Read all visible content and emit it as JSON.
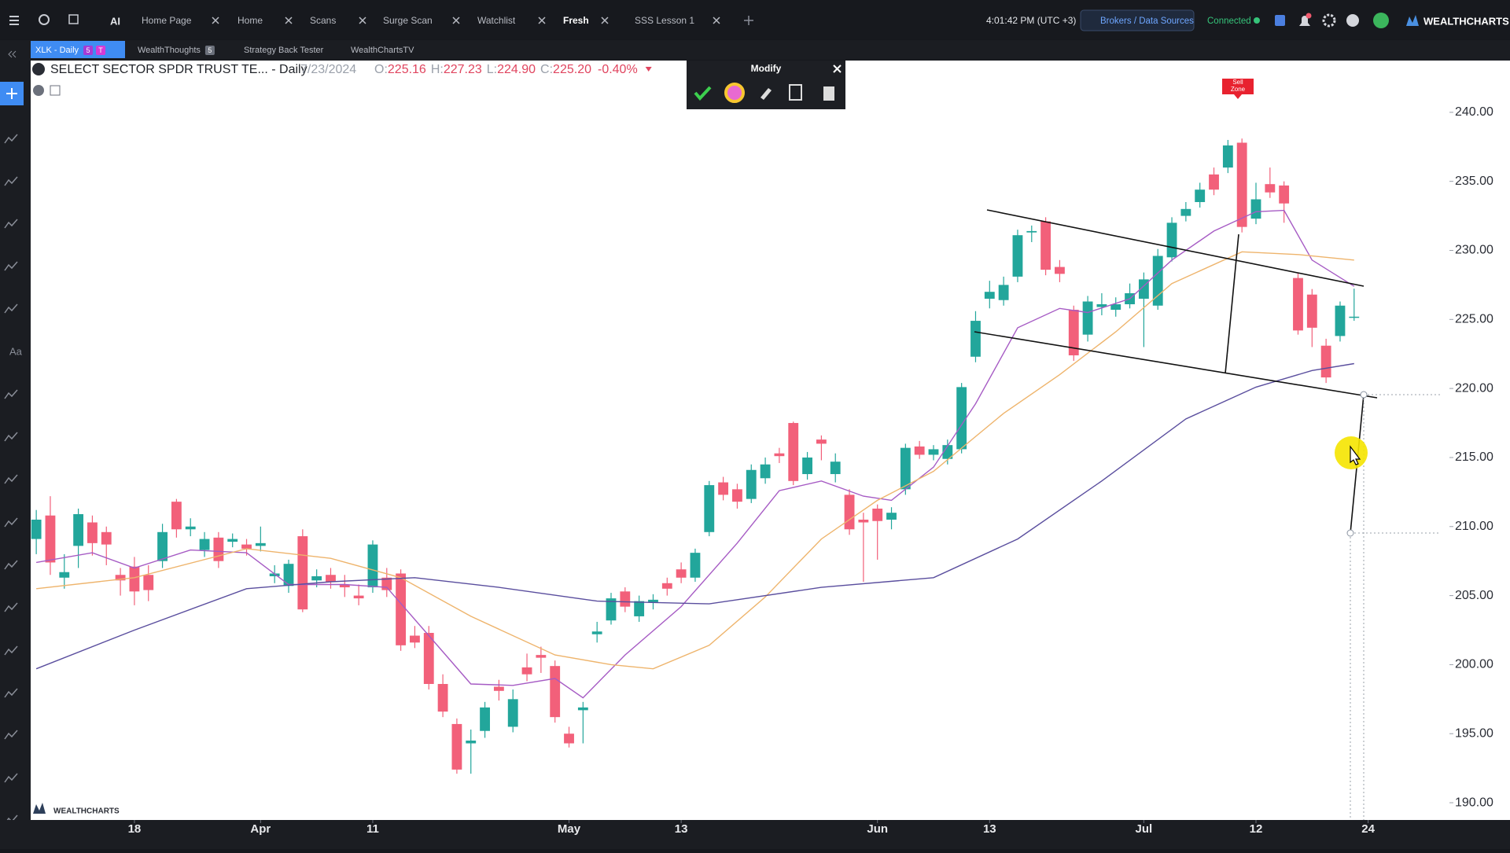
{
  "toolbar": {
    "ai": "AI",
    "tabs": [
      "Home Page",
      "Home",
      "Scans",
      "Surge Scan",
      "Watchlist",
      "Fresh",
      "SSS Lesson 1"
    ],
    "time": "4:01:42 PM  (UTC +3)",
    "brokers": "Brokers / Data Sources",
    "status": "Connected",
    "brand": "WEALTHCHARTS"
  },
  "subtabs": [
    {
      "label": "XLK - Daily",
      "badges": [
        "5",
        "T"
      ]
    },
    {
      "label": "WealthThoughts",
      "badges": [
        "5"
      ]
    },
    {
      "label": "Strategy Back Tester",
      "badges": []
    },
    {
      "label": "WealthChartsTV",
      "badges": []
    }
  ],
  "side_tool_text": "Aa",
  "legend": {
    "symbol": "SELECT SECTOR SPDR TRUST TE... - Daily",
    "date": "7/23/2024",
    "keys": [
      "O:",
      "H:",
      "L:",
      "C:"
    ],
    "values": [
      "225.16",
      "227.23",
      "224.90",
      "225.20"
    ],
    "change": "-0.40%"
  },
  "modify": {
    "title": "Modify"
  },
  "badge": [
    "Sell",
    "Zone"
  ],
  "watermark": "WEALTHCHARTS",
  "chart_data": {
    "type": "candlestick",
    "up_color": "#22a69b",
    "down_color": "#f2607a",
    "open": [
      209.1,
      210.8,
      206.3,
      208.6,
      210.3,
      209.6,
      206.5,
      207.1,
      206.5,
      207.5,
      211.8,
      209.8,
      208.3,
      209.2,
      208.9,
      208.7,
      208.6,
      206.4,
      205.7,
      209.3,
      206.1,
      206.5,
      205.8,
      205.0,
      205.6,
      206.3,
      206.6,
      202.1,
      202.3,
      198.6,
      195.7,
      194.3,
      195.2,
      198.4,
      195.5,
      199.8,
      200.7,
      199.9,
      195.0,
      196.7,
      202.2,
      203.2,
      205.3,
      203.5,
      204.5,
      205.9,
      206.9,
      206.3,
      209.6,
      213.2,
      212.7,
      212.0,
      213.5,
      215.3,
      217.5,
      213.8,
      216.3,
      213.8,
      212.3,
      210.5,
      211.3,
      210.5,
      212.7,
      215.8,
      215.2,
      214.9,
      215.6,
      222.3,
      226.5,
      226.4,
      228.1,
      231.3,
      232.1,
      228.8,
      225.7,
      223.9,
      225.9,
      225.7,
      226.1,
      226.5,
      226.0,
      229.5,
      232.5,
      233.5,
      235.5,
      236.0,
      237.8,
      232.3,
      234.8,
      234.7,
      228.0,
      226.8,
      223.1,
      223.8,
      225.16
    ],
    "high": [
      211.2,
      212.2,
      208.0,
      211.3,
      210.8,
      210.0,
      207.0,
      207.8,
      207.2,
      210.2,
      212.0,
      210.6,
      209.6,
      209.6,
      209.5,
      209.1,
      210.0,
      207.2,
      207.6,
      209.8,
      206.9,
      207.0,
      206.5,
      205.8,
      209.0,
      207.0,
      206.9,
      202.8,
      202.8,
      199.3,
      196.1,
      195.3,
      197.3,
      198.9,
      198.2,
      200.8,
      201.3,
      200.3,
      195.5,
      197.3,
      203.1,
      205.2,
      205.6,
      205.0,
      205.1,
      206.3,
      207.4,
      208.4,
      213.3,
      213.6,
      213.1,
      214.5,
      215.0,
      215.7,
      217.6,
      215.4,
      216.6,
      215.3,
      212.7,
      211.0,
      211.6,
      211.4,
      216.0,
      216.2,
      215.9,
      216.3,
      220.4,
      225.6,
      227.8,
      228.1,
      231.5,
      231.8,
      232.4,
      229.3,
      226.0,
      226.7,
      226.9,
      226.6,
      227.6,
      228.4,
      230.1,
      232.4,
      233.5,
      234.9,
      236.0,
      238.0,
      238.1,
      234.9,
      236.0,
      235.0,
      228.4,
      227.2,
      223.6,
      226.3,
      227.23
    ],
    "low": [
      208.0,
      206.5,
      205.5,
      207.0,
      207.9,
      207.2,
      205.0,
      204.3,
      204.6,
      207.0,
      209.2,
      209.3,
      207.8,
      207.0,
      208.5,
      207.9,
      208.2,
      205.9,
      205.2,
      203.8,
      205.6,
      205.5,
      204.9,
      204.3,
      205.2,
      204.9,
      201.0,
      201.2,
      198.2,
      196.2,
      192.1,
      192.1,
      194.7,
      197.4,
      195.1,
      198.8,
      199.4,
      195.8,
      194.0,
      194.3,
      201.6,
      202.9,
      203.8,
      203.1,
      204.0,
      205.0,
      205.9,
      206.0,
      209.3,
      211.9,
      211.3,
      211.7,
      213.1,
      214.6,
      213.0,
      213.4,
      214.8,
      213.2,
      209.4,
      206.0,
      207.6,
      209.8,
      212.3,
      214.9,
      214.8,
      214.5,
      215.3,
      221.9,
      225.8,
      226.0,
      227.7,
      230.6,
      228.2,
      227.7,
      222.0,
      223.4,
      225.3,
      225.2,
      225.8,
      223.0,
      225.7,
      229.2,
      232.1,
      233.1,
      234.0,
      235.6,
      231.3,
      231.9,
      233.8,
      232.0,
      223.9,
      223.0,
      220.4,
      223.4,
      224.9
    ],
    "close": [
      210.5,
      207.4,
      206.7,
      210.9,
      208.8,
      208.7,
      206.1,
      205.3,
      205.4,
      209.6,
      209.8,
      210.0,
      209.1,
      207.5,
      209.1,
      208.4,
      208.8,
      206.6,
      207.3,
      204.0,
      206.4,
      206.0,
      205.6,
      204.8,
      208.7,
      205.4,
      201.4,
      201.6,
      198.6,
      196.6,
      192.4,
      194.5,
      196.9,
      198.1,
      197.5,
      199.3,
      200.5,
      196.2,
      194.3,
      196.9,
      202.4,
      204.8,
      204.2,
      204.6,
      204.7,
      205.5,
      206.3,
      208.1,
      213.0,
      212.3,
      211.8,
      214.1,
      214.5,
      215.1,
      213.3,
      215.0,
      216.0,
      214.7,
      209.8,
      210.3,
      210.4,
      211.0,
      215.7,
      215.2,
      215.6,
      215.9,
      220.1,
      224.9,
      227.0,
      227.5,
      231.1,
      231.4,
      228.6,
      228.3,
      222.4,
      226.3,
      226.1,
      226.1,
      226.9,
      227.9,
      229.6,
      232.0,
      233.0,
      234.4,
      234.4,
      237.6,
      231.7,
      233.7,
      234.2,
      233.4,
      224.2,
      224.4,
      220.8,
      226.0,
      225.2
    ],
    "series": [
      {
        "color": "#a65bc4",
        "x": [
          0,
          4,
          7,
          11,
          15,
          18,
          22,
          25,
          28,
          31,
          34,
          37,
          39,
          42,
          46,
          50,
          53,
          56,
          59,
          61,
          64,
          67,
          70,
          73,
          75,
          78,
          81,
          84,
          87,
          89,
          91,
          94
        ],
        "values": [
          207.4,
          208.1,
          207.0,
          208.3,
          208.1,
          205.8,
          205.8,
          205.6,
          202.1,
          198.6,
          198.5,
          199.0,
          197.6,
          200.7,
          204.2,
          208.8,
          212.6,
          213.3,
          212.2,
          211.9,
          214.3,
          218.9,
          224.4,
          225.8,
          225.5,
          226.5,
          229.3,
          231.4,
          232.8,
          232.9,
          229.3,
          227.4
        ]
      },
      {
        "color": "#eeb46c",
        "x": [
          0,
          7,
          15,
          21,
          26,
          31,
          37,
          41,
          44,
          48,
          52,
          56,
          60,
          64,
          69,
          73,
          77,
          81,
          86,
          90,
          94
        ],
        "values": [
          205.5,
          206.3,
          208.4,
          207.7,
          206.3,
          203.5,
          200.7,
          200.0,
          199.7,
          201.4,
          204.9,
          209.1,
          211.9,
          214.0,
          218.2,
          221.0,
          224.1,
          227.6,
          229.9,
          229.7,
          229.3
        ]
      },
      {
        "color": "#5a4e9e",
        "x": [
          0,
          7,
          15,
          21,
          27,
          33,
          40,
          48,
          56,
          64,
          70,
          76,
          82,
          87,
          91,
          94
        ],
        "values": [
          199.7,
          202.5,
          205.5,
          206.0,
          206.3,
          205.6,
          204.6,
          204.4,
          205.6,
          206.3,
          209.1,
          213.3,
          217.8,
          220.1,
          221.3,
          221.8
        ]
      }
    ],
    "xlim": [
      -0.4,
      100.8
    ],
    "xticks": [
      {
        "value": 7,
        "label": "18"
      },
      {
        "value": 16,
        "label": "Apr"
      },
      {
        "value": 24,
        "label": "11"
      },
      {
        "value": 38,
        "label": "May"
      },
      {
        "value": 46,
        "label": "13"
      },
      {
        "value": 60,
        "label": "Jun"
      },
      {
        "value": 68,
        "label": "13"
      },
      {
        "value": 79,
        "label": "Jul"
      },
      {
        "value": 87,
        "label": "12"
      },
      {
        "value": 95,
        "label": "24"
      }
    ],
    "ylim": [
      188.75,
      243.75
    ],
    "yticks": [
      {
        "value": 190,
        "label": "190.00"
      },
      {
        "value": 195,
        "label": "195.00"
      },
      {
        "value": 200,
        "label": "200.00"
      },
      {
        "value": 205,
        "label": "205.00"
      },
      {
        "value": 210,
        "label": "210.00"
      },
      {
        "value": 215,
        "label": "215.00"
      },
      {
        "value": 220,
        "label": "220.00"
      },
      {
        "value": 225,
        "label": "225.00"
      },
      {
        "value": 230,
        "label": "230.00"
      },
      {
        "value": 235,
        "label": "235.00"
      },
      {
        "value": 240,
        "label": "240.00"
      }
    ],
    "grid": false
  }
}
